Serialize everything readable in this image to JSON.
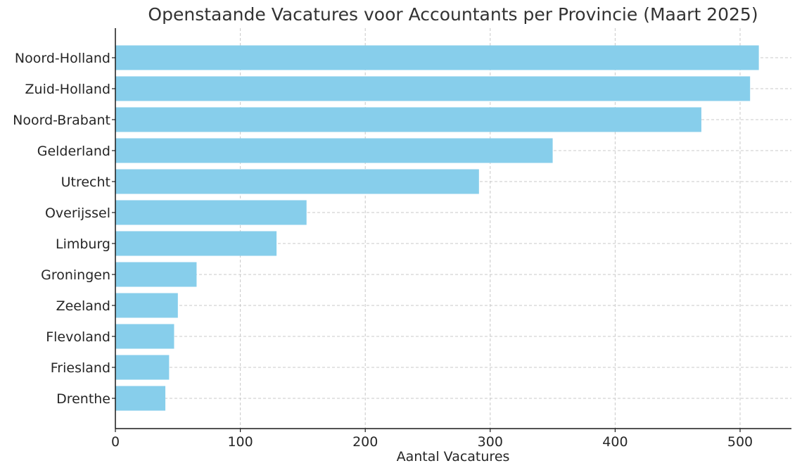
{
  "chart_data": {
    "type": "bar",
    "orientation": "horizontal",
    "title": "Openstaande Vacatures voor Accountants per Provincie (Maart 2025)",
    "xlabel": "Aantal Vacatures",
    "ylabel": "",
    "categories": [
      "Noord-Holland",
      "Zuid-Holland",
      "Noord-Brabant",
      "Gelderland",
      "Utrecht",
      "Overijssel",
      "Limburg",
      "Groningen",
      "Zeeland",
      "Flevoland",
      "Friesland",
      "Drenthe"
    ],
    "values": [
      515,
      508,
      469,
      350,
      291,
      153,
      129,
      65,
      50,
      47,
      43,
      40
    ],
    "xlim": [
      0,
      540
    ],
    "xticks": [
      0,
      100,
      200,
      300,
      400,
      500
    ],
    "grid": true,
    "bar_color": "#87CEEB"
  }
}
